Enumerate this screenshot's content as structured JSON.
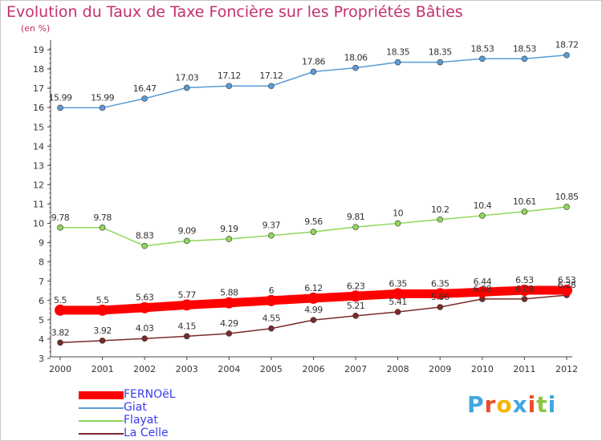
{
  "title": "Evolution du Taux de Taxe Foncière sur les Propriétés Bâties",
  "subtitle": "(en %)",
  "chart_data": {
    "type": "line",
    "title": "Evolution du Taux de Taxe Foncière sur les Propriétés Bâties",
    "ylabel": "(en %)",
    "xlabel": "",
    "ylim": [
      3,
      19
    ],
    "yticks": [
      "3",
      "4",
      "5",
      "6",
      "7",
      "8",
      "9",
      "10",
      "11",
      "12",
      "13",
      "14",
      "15",
      "16",
      "17",
      "18",
      "19"
    ],
    "x": [
      "2000",
      "2001",
      "2002",
      "2003",
      "2004",
      "2005",
      "2006",
      "2007",
      "2008",
      "2009",
      "2010",
      "2011",
      "2012"
    ],
    "grid": false,
    "legend_position": "bottom-left",
    "series": [
      {
        "name": "FERNOëL",
        "color": "#ff0000",
        "values": [
          5.5,
          5.5,
          5.63,
          5.77,
          5.88,
          6,
          6.12,
          6.23,
          6.35,
          6.35,
          6.44,
          6.53,
          6.53
        ],
        "labels": [
          "5.5",
          "5.5",
          "5.63",
          "5.77",
          "5.88",
          "6",
          "6.12",
          "6.23",
          "6.35",
          "6.35",
          "6.44",
          "6.53",
          "6.53"
        ]
      },
      {
        "name": "Giat",
        "color": "#5b9bd5",
        "values": [
          15.99,
          15.99,
          16.47,
          17.03,
          17.12,
          17.12,
          17.86,
          18.06,
          18.35,
          18.35,
          18.53,
          18.53,
          18.72
        ],
        "labels": [
          "15.99",
          "15.99",
          "16.47",
          "17.03",
          "17.12",
          "17.12",
          "17.86",
          "18.06",
          "18.35",
          "18.35",
          "18.53",
          "18.53",
          "18.72"
        ]
      },
      {
        "name": "Flayat",
        "color": "#8fd65a",
        "values": [
          9.78,
          9.78,
          8.83,
          9.09,
          9.19,
          9.37,
          9.56,
          9.81,
          10,
          10.2,
          10.4,
          10.61,
          10.85
        ],
        "labels": [
          "9.78",
          "9.78",
          "8.83",
          "9.09",
          "9.19",
          "9.37",
          "9.56",
          "9.81",
          "10",
          "10.2",
          "10.4",
          "10.61",
          "10.85"
        ]
      },
      {
        "name": "La Celle",
        "color": "#7a2a2a",
        "values": [
          3.82,
          3.92,
          4.03,
          4.15,
          4.29,
          4.55,
          4.99,
          5.21,
          5.41,
          5.66,
          6.08,
          6.08,
          6.28
        ],
        "labels": [
          "3.82",
          "3.92",
          "4.03",
          "4.15",
          "4.29",
          "4.55",
          "4.99",
          "5.21",
          "5.41",
          "5.66",
          "6.08",
          "6.08",
          "6.28"
        ]
      }
    ]
  },
  "logo": {
    "letters": [
      "P",
      "r",
      "o",
      "x",
      "i",
      "t",
      "i"
    ],
    "colors": [
      "#3fa7e0",
      "#e94e2a",
      "#f4b400",
      "#3fa7e0",
      "#e94e2a",
      "#8cc63f",
      "#3fa7e0"
    ]
  }
}
